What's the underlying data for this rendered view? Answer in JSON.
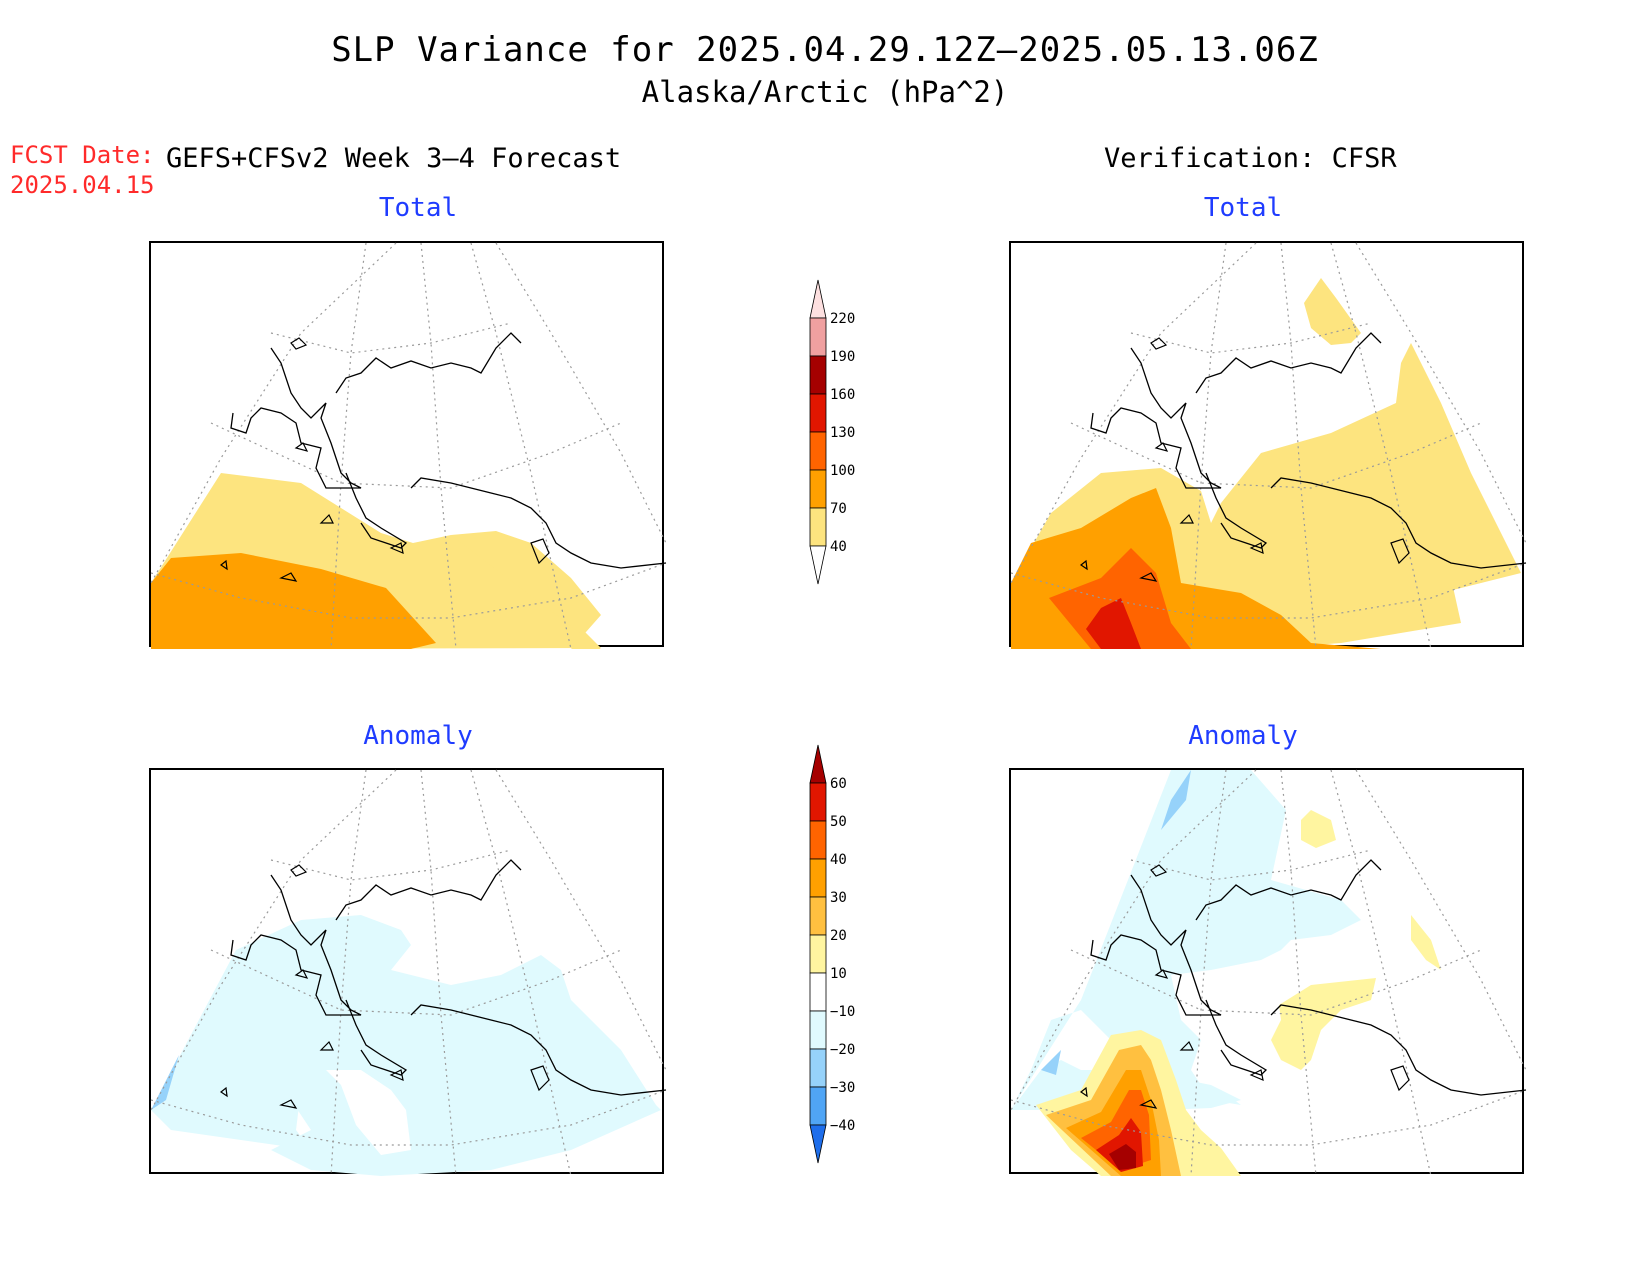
{
  "title": "SLP Variance for 2025.04.29.12Z–2025.05.13.06Z",
  "subtitle": "Alaska/Arctic (hPa^2)",
  "fcst_date": {
    "label": "FCST Date:",
    "value": "2025.04.15"
  },
  "left_column_header": "GEFS+CFSv2 Week 3–4 Forecast",
  "right_column_header": "Verification: CFSR",
  "panels": {
    "top_left": {
      "title": "Total"
    },
    "top_right": {
      "title": "Total"
    },
    "bottom_left": {
      "title": "Anomaly"
    },
    "bottom_right": {
      "title": "Anomaly"
    }
  },
  "colorbars": {
    "total": {
      "levels": [
        "40",
        "70",
        "100",
        "130",
        "160",
        "190",
        "220"
      ],
      "colors": [
        "#fde47f",
        "#ffa000",
        "#ff6400",
        "#e11600",
        "#a50000",
        "#f0a0a0",
        "#fde0e0"
      ]
    },
    "anomaly": {
      "levels": [
        "60",
        "50",
        "40",
        "30",
        "20",
        "10",
        "−10",
        "−20",
        "−30",
        "−40"
      ],
      "colors": [
        "#a50000",
        "#e11600",
        "#ff6400",
        "#ffa000",
        "#ffc040",
        "#fff5a0",
        "#ffffff",
        "#e0fafe",
        "#96d2fa",
        "#50a5f5",
        "#1e6eeb"
      ]
    }
  },
  "colors": {
    "title_text": "#000000",
    "fcst_text": "#ff2a2a",
    "panel_title_text": "#1f3cff",
    "grid": "#9a9a9a",
    "coast": "#000000"
  }
}
